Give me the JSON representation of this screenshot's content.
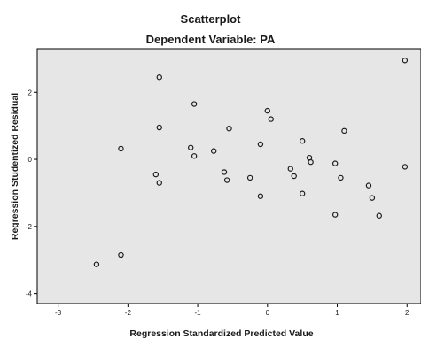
{
  "chart_data": {
    "type": "scatter",
    "title": "Scatterplot",
    "subtitle": "Dependent Variable: PA",
    "xlabel": "Regression Standardized Predicted Value",
    "ylabel": "Regression Studentized Residual",
    "xlim": [
      -3.3,
      2.2
    ],
    "ylim": [
      -4.3,
      3.3
    ],
    "x_ticks": [
      -3,
      -2,
      -1,
      0,
      1,
      2
    ],
    "y_ticks": [
      -4,
      -2,
      0,
      2
    ],
    "grid": false,
    "colors": {
      "plot_background": "#e6e6e6",
      "marker_edge": "#1c1c1c",
      "frame": "#000000"
    },
    "points": [
      {
        "x": -2.45,
        "y": -3.13
      },
      {
        "x": -2.1,
        "y": -2.85
      },
      {
        "x": -2.1,
        "y": 0.32
      },
      {
        "x": -1.6,
        "y": -0.45
      },
      {
        "x": -1.55,
        "y": -0.7
      },
      {
        "x": -1.55,
        "y": 0.95
      },
      {
        "x": -1.55,
        "y": 2.45
      },
      {
        "x": -1.1,
        "y": 0.35
      },
      {
        "x": -1.05,
        "y": 0.1
      },
      {
        "x": -1.05,
        "y": 1.65
      },
      {
        "x": -0.77,
        "y": 0.25
      },
      {
        "x": -0.62,
        "y": -0.38
      },
      {
        "x": -0.58,
        "y": -0.62
      },
      {
        "x": -0.55,
        "y": 0.92
      },
      {
        "x": -0.25,
        "y": -0.55
      },
      {
        "x": -0.1,
        "y": 0.45
      },
      {
        "x": -0.1,
        "y": -1.1
      },
      {
        "x": 0.0,
        "y": 1.45
      },
      {
        "x": 0.05,
        "y": 1.2
      },
      {
        "x": 0.33,
        "y": -0.28
      },
      {
        "x": 0.38,
        "y": -0.5
      },
      {
        "x": 0.5,
        "y": 0.55
      },
      {
        "x": 0.5,
        "y": -1.02
      },
      {
        "x": 0.6,
        "y": 0.05
      },
      {
        "x": 0.62,
        "y": -0.08
      },
      {
        "x": 0.97,
        "y": -0.12
      },
      {
        "x": 0.97,
        "y": -1.65
      },
      {
        "x": 1.05,
        "y": -0.55
      },
      {
        "x": 1.1,
        "y": 0.85
      },
      {
        "x": 1.45,
        "y": -0.78
      },
      {
        "x": 1.5,
        "y": -1.15
      },
      {
        "x": 1.6,
        "y": -1.68
      },
      {
        "x": 1.97,
        "y": 2.95
      },
      {
        "x": 1.97,
        "y": -0.22
      }
    ]
  }
}
